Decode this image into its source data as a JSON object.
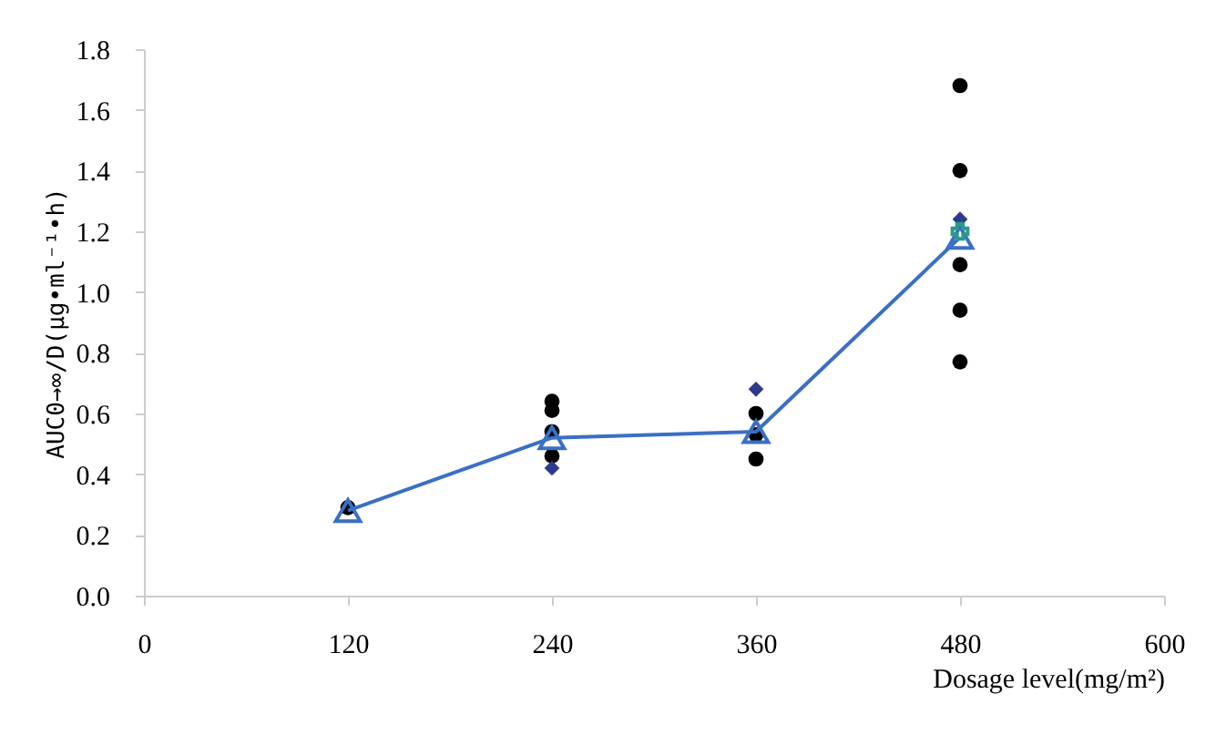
{
  "chart_data": {
    "type": "scatter",
    "xlabel": "Dosage level(mg/m²)",
    "ylabel": "AUC0→∞/D(μg•ml⁻¹•h)",
    "xlim": [
      0,
      600
    ],
    "xticks": [
      0,
      120,
      240,
      360,
      480,
      600
    ],
    "ylim": [
      0,
      1.8
    ],
    "yticks": [
      {
        "value": 0,
        "label": "0.0"
      },
      {
        "value": 0.2,
        "label": "0.2"
      },
      {
        "value": 0.4,
        "label": "0.4"
      },
      {
        "value": 0.6,
        "label": "0.6"
      },
      {
        "value": 0.8,
        "label": "0.8"
      },
      {
        "value": 1,
        "label": "1.0"
      },
      {
        "value": 1.2,
        "label": "1.2"
      },
      {
        "value": 1.4,
        "label": "1.4"
      },
      {
        "value": 1.6,
        "label": "1.6"
      },
      {
        "value": 1.8,
        "label": "1.8"
      }
    ],
    "grid": false,
    "series": [
      {
        "marker": "circle",
        "color": "#000000",
        "x": [
          120,
          240,
          240,
          240,
          240,
          360,
          360,
          360,
          480,
          480,
          480,
          480,
          480
        ],
        "values": [
          0.29,
          0.64,
          0.61,
          0.54,
          0.46,
          0.6,
          0.53,
          0.45,
          1.68,
          1.4,
          1.09,
          0.94,
          0.77
        ]
      },
      {
        "marker": "diamond",
        "color": "#2e3a8c",
        "x": [
          240,
          360,
          480
        ],
        "values": [
          0.42,
          0.68,
          1.24
        ]
      },
      {
        "type": "line",
        "marker": "triangle",
        "color": "#3a6fc4",
        "x": [
          120,
          240,
          360,
          480
        ],
        "values": [
          0.28,
          0.52,
          0.54,
          1.18
        ]
      },
      {
        "marker": "cross",
        "color": "#2a9a8a",
        "x": [
          480
        ],
        "values": [
          1.2
        ]
      }
    ]
  }
}
